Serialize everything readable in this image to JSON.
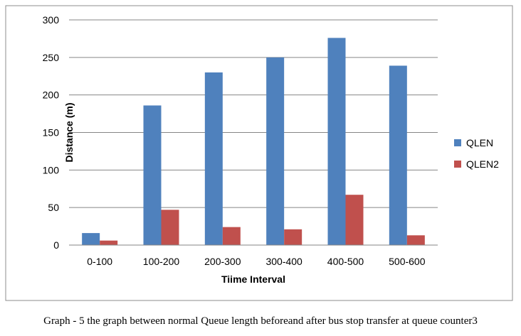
{
  "chart_data": {
    "type": "bar",
    "title": "",
    "xlabel": "Tiime Interval",
    "ylabel": "Distance (m)",
    "categories": [
      "0-100",
      "100-200",
      "200-300",
      "300-400",
      "400-500",
      "500-600"
    ],
    "series": [
      {
        "name": "QLEN",
        "color": "#4f81bd",
        "values": [
          16,
          186,
          230,
          250,
          276,
          239
        ]
      },
      {
        "name": "QLEN2",
        "color": "#c0504d",
        "values": [
          6,
          47,
          24,
          21,
          67,
          13
        ]
      }
    ],
    "ylim": [
      0,
      300
    ],
    "yticks": [
      0,
      50,
      100,
      150,
      200,
      250,
      300
    ],
    "grid": true,
    "legend_position": "right"
  },
  "caption": "Graph - 5 the graph between normal Queue length beforeand after bus stop transfer at queue counter3"
}
